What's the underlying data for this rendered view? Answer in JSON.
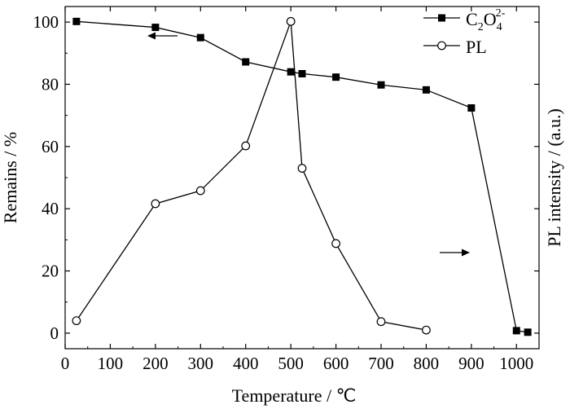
{
  "chart_data": {
    "type": "line",
    "xlabel": "Temperature / ℃",
    "ylabel_left": "Remains / %",
    "ylabel_right": "PL intensity / (a.u.)",
    "xlim": [
      0,
      1050
    ],
    "ylim": [
      -5,
      105
    ],
    "x_ticks": [
      "0",
      "100",
      "200",
      "300",
      "400",
      "500",
      "600",
      "700",
      "800",
      "900",
      "1000"
    ],
    "y_ticks": [
      "0",
      "20",
      "40",
      "60",
      "80",
      "100"
    ],
    "series": [
      {
        "name": "C2O4 2-",
        "legend_label": "C",
        "legend_sub1": "2",
        "legend_mid": "O",
        "legend_sub2": "4",
        "legend_sup": "2-",
        "marker": "filled-square",
        "color": "#000000",
        "axis": "left",
        "x": [
          25,
          200,
          300,
          400,
          500,
          525,
          600,
          700,
          800,
          900,
          1000,
          1025
        ],
        "y": [
          100.2,
          98.3,
          95.0,
          87.2,
          84.0,
          83.4,
          82.3,
          79.8,
          78.2,
          72.4,
          0.8,
          0.3
        ]
      },
      {
        "name": "PL",
        "legend_label": "PL",
        "marker": "open-circle",
        "color": "#000000",
        "axis": "right",
        "x": [
          25,
          200,
          300,
          400,
          500,
          525,
          600,
          700,
          800
        ],
        "y": [
          4.0,
          41.6,
          45.8,
          60.2,
          100.2,
          53.0,
          28.8,
          3.7,
          1.0
        ]
      }
    ],
    "arrows": [
      {
        "direction": "left",
        "points_to_axis": "left"
      },
      {
        "direction": "right",
        "points_to_axis": "right"
      }
    ],
    "legend_position": "top-right",
    "grid": false
  }
}
